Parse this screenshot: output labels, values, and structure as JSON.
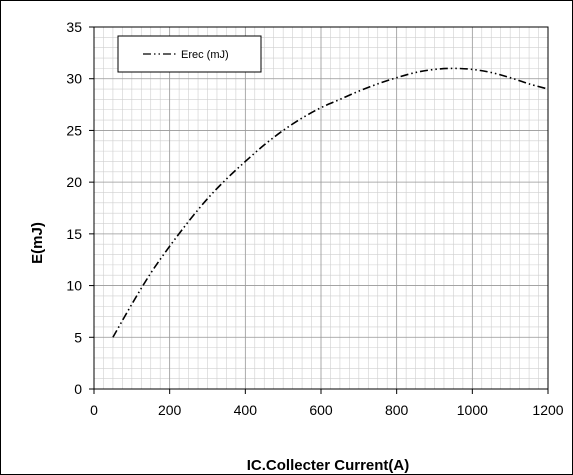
{
  "chart_data": {
    "type": "line",
    "title": "",
    "xlabel": "IC.Collecter Current(A)",
    "ylabel": "E(mJ)",
    "xlim": [
      0,
      1200
    ],
    "ylim": [
      0,
      35
    ],
    "x_ticks": [
      0,
      200,
      400,
      600,
      800,
      1000,
      1200
    ],
    "y_ticks": [
      0,
      5,
      10,
      15,
      20,
      25,
      30,
      35
    ],
    "x_minor_step": 25,
    "y_minor_step": 1,
    "grid": true,
    "legend_position": "top-left",
    "series": [
      {
        "name": "Erec (mJ)",
        "line_style": "dash-dot-dot",
        "color": "#000000",
        "x": [
          50,
          100,
          150,
          200,
          250,
          300,
          350,
          400,
          450,
          500,
          550,
          600,
          650,
          700,
          750,
          800,
          850,
          900,
          950,
          1000,
          1050,
          1100,
          1150,
          1200
        ],
        "y": [
          5.0,
          8.2,
          11.2,
          13.8,
          16.2,
          18.4,
          20.3,
          22.0,
          23.6,
          25.0,
          26.2,
          27.2,
          28.0,
          28.8,
          29.5,
          30.1,
          30.6,
          30.9,
          31.0,
          30.9,
          30.6,
          30.1,
          29.5,
          29.0
        ]
      }
    ]
  }
}
